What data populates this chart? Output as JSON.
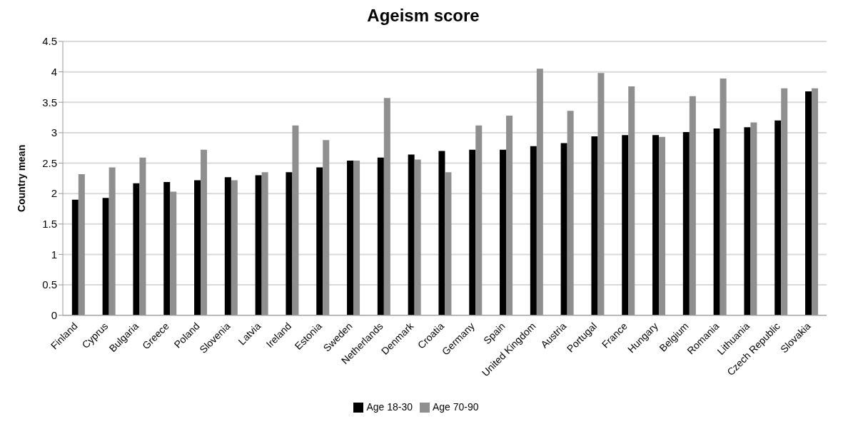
{
  "chart_data": {
    "type": "bar",
    "title": "Ageism score",
    "ylabel": "Country mean",
    "categories": [
      "Finland",
      "Cyprus",
      "Bulgaria",
      "Greece",
      "Poland",
      "Slovenia",
      "Latvia",
      "Ireland",
      "Estonia",
      "Sweden",
      "Netherlands",
      "Denmark",
      "Croatia",
      "Germany",
      "Spain",
      "United Kingdom",
      "Austria",
      "Portugal",
      "France",
      "Hungary",
      "Belgium",
      "Romania",
      "Lithuania",
      "Czech Republic",
      "Slovakia"
    ],
    "series": [
      {
        "name": "Age 18-30",
        "color": "#000000",
        "values": [
          1.9,
          1.93,
          2.17,
          2.19,
          2.22,
          2.27,
          2.3,
          2.35,
          2.43,
          2.54,
          2.59,
          2.64,
          2.7,
          2.72,
          2.72,
          2.78,
          2.83,
          2.94,
          2.96,
          2.96,
          3.01,
          3.07,
          3.09,
          3.2,
          3.68
        ]
      },
      {
        "name": "Age 70-90",
        "color": "#8f8f8f",
        "values": [
          2.32,
          2.43,
          2.59,
          2.03,
          2.72,
          2.22,
          2.35,
          3.12,
          2.88,
          2.54,
          3.57,
          2.56,
          2.35,
          3.12,
          3.28,
          4.05,
          3.36,
          3.98,
          3.76,
          2.93,
          3.6,
          3.89,
          3.17,
          3.73,
          3.73
        ]
      }
    ],
    "ylim": [
      0,
      4.5
    ],
    "yticks": [
      0,
      0.5,
      1,
      1.5,
      2,
      2.5,
      3,
      3.5,
      4,
      4.5
    ],
    "grid": "y",
    "legend": "bottom"
  }
}
